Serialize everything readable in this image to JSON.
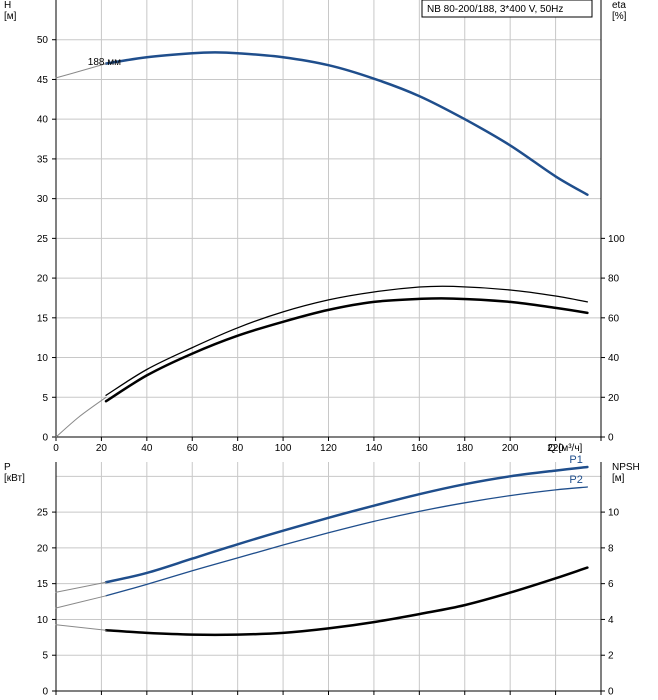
{
  "title": "NB 80-200/188, 3*400 V, 50Hz",
  "colors": {
    "blue": "#1f4e8c",
    "black": "#000000",
    "grid": "#c8c8c8",
    "thin_gray": "#8a8a8a"
  },
  "chart_data": [
    {
      "type": "line",
      "name": "top",
      "x_ticks": [
        "0",
        "20",
        "40",
        "60",
        "80",
        "100",
        "120",
        "140",
        "160",
        "180",
        "200",
        "220"
      ],
      "x_unit_label": "Q [м³/ч]",
      "xlim": [
        0,
        240
      ],
      "left_axis": {
        "label_line1": "H",
        "label_line2": "[м]",
        "ylim": [
          0,
          55
        ],
        "ticks": [
          "0",
          "5",
          "10",
          "15",
          "20",
          "25",
          "30",
          "35",
          "40",
          "45",
          "50"
        ]
      },
      "right_axis": {
        "label_line1": "eta",
        "label_line2": "[%]",
        "ylim": [
          0,
          220
        ],
        "ticks": [
          "0",
          "20",
          "40",
          "60",
          "80",
          "100"
        ]
      },
      "annotation": "188 мм",
      "series": [
        {
          "key": "H",
          "axis": "left",
          "color": "#1f4e8c",
          "width": 2.5,
          "x": [
            22,
            40,
            60,
            70,
            80,
            100,
            120,
            140,
            160,
            180,
            200,
            220,
            234
          ],
          "y": [
            47.0,
            47.8,
            48.3,
            48.4,
            48.3,
            47.8,
            46.8,
            45.1,
            42.9,
            40.0,
            36.7,
            32.8,
            30.5
          ]
        },
        {
          "key": "H-ext",
          "axis": "left",
          "color": "#8a8a8a",
          "width": 1,
          "x": [
            0,
            10,
            22
          ],
          "y": [
            45.2,
            46.0,
            47.0
          ]
        },
        {
          "key": "eta-upper",
          "axis": "right",
          "color": "#000000",
          "width": 1.3,
          "x": [
            22,
            40,
            60,
            80,
            100,
            120,
            140,
            160,
            175,
            200,
            220,
            234
          ],
          "y": [
            21,
            34,
            45,
            55,
            63,
            69,
            73,
            75.5,
            75.8,
            74,
            71,
            68
          ]
        },
        {
          "key": "eta-lower",
          "axis": "right",
          "color": "#000000",
          "width": 2.5,
          "x": [
            22,
            40,
            60,
            80,
            100,
            120,
            140,
            160,
            175,
            200,
            220,
            234
          ],
          "y": [
            18,
            31,
            42,
            51,
            58,
            64,
            68,
            69.5,
            69.7,
            68,
            65,
            62.5
          ]
        },
        {
          "key": "eta-ext",
          "axis": "right",
          "color": "#8a8a8a",
          "width": 1,
          "x": [
            0,
            10,
            22
          ],
          "y": [
            0,
            10,
            20
          ]
        }
      ]
    },
    {
      "type": "line",
      "name": "bottom",
      "xlim": [
        0,
        240
      ],
      "left_axis": {
        "label_line1": "P",
        "label_line2": "[кВт]",
        "ylim": [
          0,
          32
        ],
        "ticks": [
          "0",
          "5",
          "10",
          "15",
          "20",
          "25"
        ]
      },
      "right_axis": {
        "label_line1": "NPSH",
        "label_line2": "[м]",
        "ylim": [
          0,
          12.8
        ],
        "ticks": [
          "0",
          "2",
          "4",
          "6",
          "8",
          "10"
        ]
      },
      "series": [
        {
          "key": "P1",
          "label": "P1",
          "axis": "left",
          "color": "#1f4e8c",
          "width": 2.5,
          "x": [
            22,
            40,
            60,
            80,
            100,
            120,
            140,
            160,
            180,
            200,
            220,
            234
          ],
          "y": [
            15.2,
            16.5,
            18.5,
            20.5,
            22.4,
            24.2,
            25.9,
            27.5,
            28.9,
            30.0,
            30.8,
            31.3
          ]
        },
        {
          "key": "P2",
          "label": "P2",
          "axis": "left",
          "color": "#1f4e8c",
          "width": 1.3,
          "x": [
            22,
            40,
            60,
            80,
            100,
            120,
            140,
            160,
            180,
            200,
            220,
            234
          ],
          "y": [
            13.3,
            14.9,
            16.8,
            18.6,
            20.4,
            22.1,
            23.7,
            25.1,
            26.3,
            27.3,
            28.1,
            28.5
          ]
        },
        {
          "key": "P-ext1",
          "axis": "left",
          "color": "#8a8a8a",
          "width": 1,
          "x": [
            0,
            22
          ],
          "y": [
            13.8,
            15.2
          ]
        },
        {
          "key": "P-ext2",
          "axis": "left",
          "color": "#8a8a8a",
          "width": 1,
          "x": [
            0,
            22
          ],
          "y": [
            11.6,
            13.3
          ]
        },
        {
          "key": "NPSH",
          "axis": "right",
          "color": "#000000",
          "width": 2.5,
          "x": [
            22,
            40,
            60,
            80,
            100,
            120,
            140,
            160,
            180,
            200,
            220,
            234
          ],
          "y": [
            3.4,
            3.25,
            3.15,
            3.15,
            3.25,
            3.5,
            3.85,
            4.3,
            4.8,
            5.5,
            6.3,
            6.9
          ]
        },
        {
          "key": "NPSH-ext",
          "axis": "right",
          "color": "#8a8a8a",
          "width": 1,
          "x": [
            0,
            22
          ],
          "y": [
            3.7,
            3.4
          ]
        }
      ]
    }
  ]
}
